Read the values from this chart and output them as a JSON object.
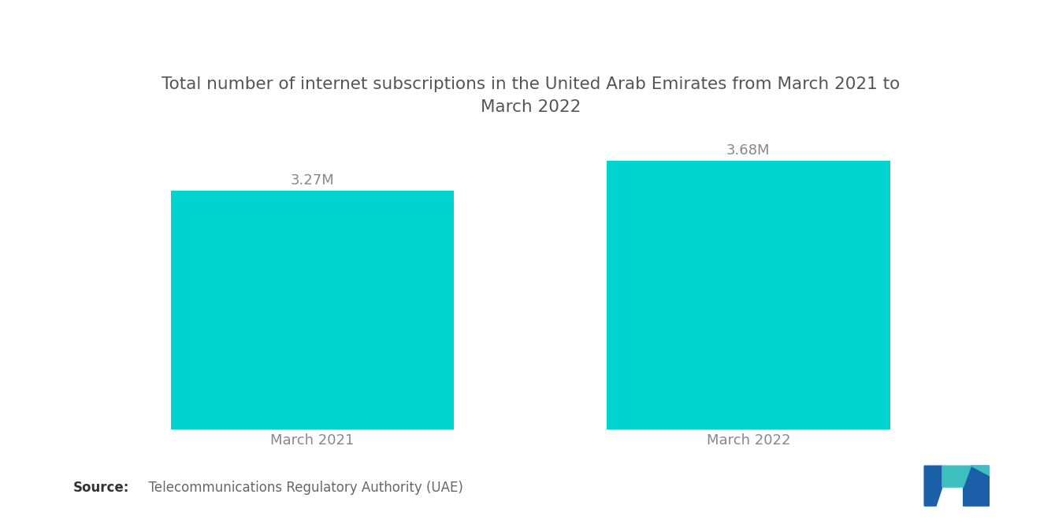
{
  "title": "Total number of internet subscriptions in the United Arab Emirates from March 2021 to\nMarch 2022",
  "categories": [
    "March 2021",
    "March 2022"
  ],
  "values": [
    3.27,
    3.68
  ],
  "labels": [
    "3.27M",
    "3.68M"
  ],
  "bar_color": "#00D4CF",
  "background_color": "#ffffff",
  "title_color": "#555555",
  "label_color": "#888888",
  "source_bold": "Source:",
  "source_text": "  Telecommunications Regulatory Authority (UAE)",
  "ylim": [
    0,
    4.3
  ],
  "bar_width": 0.65,
  "title_fontsize": 15.5,
  "label_fontsize": 13,
  "xtick_fontsize": 13,
  "source_fontsize": 12
}
